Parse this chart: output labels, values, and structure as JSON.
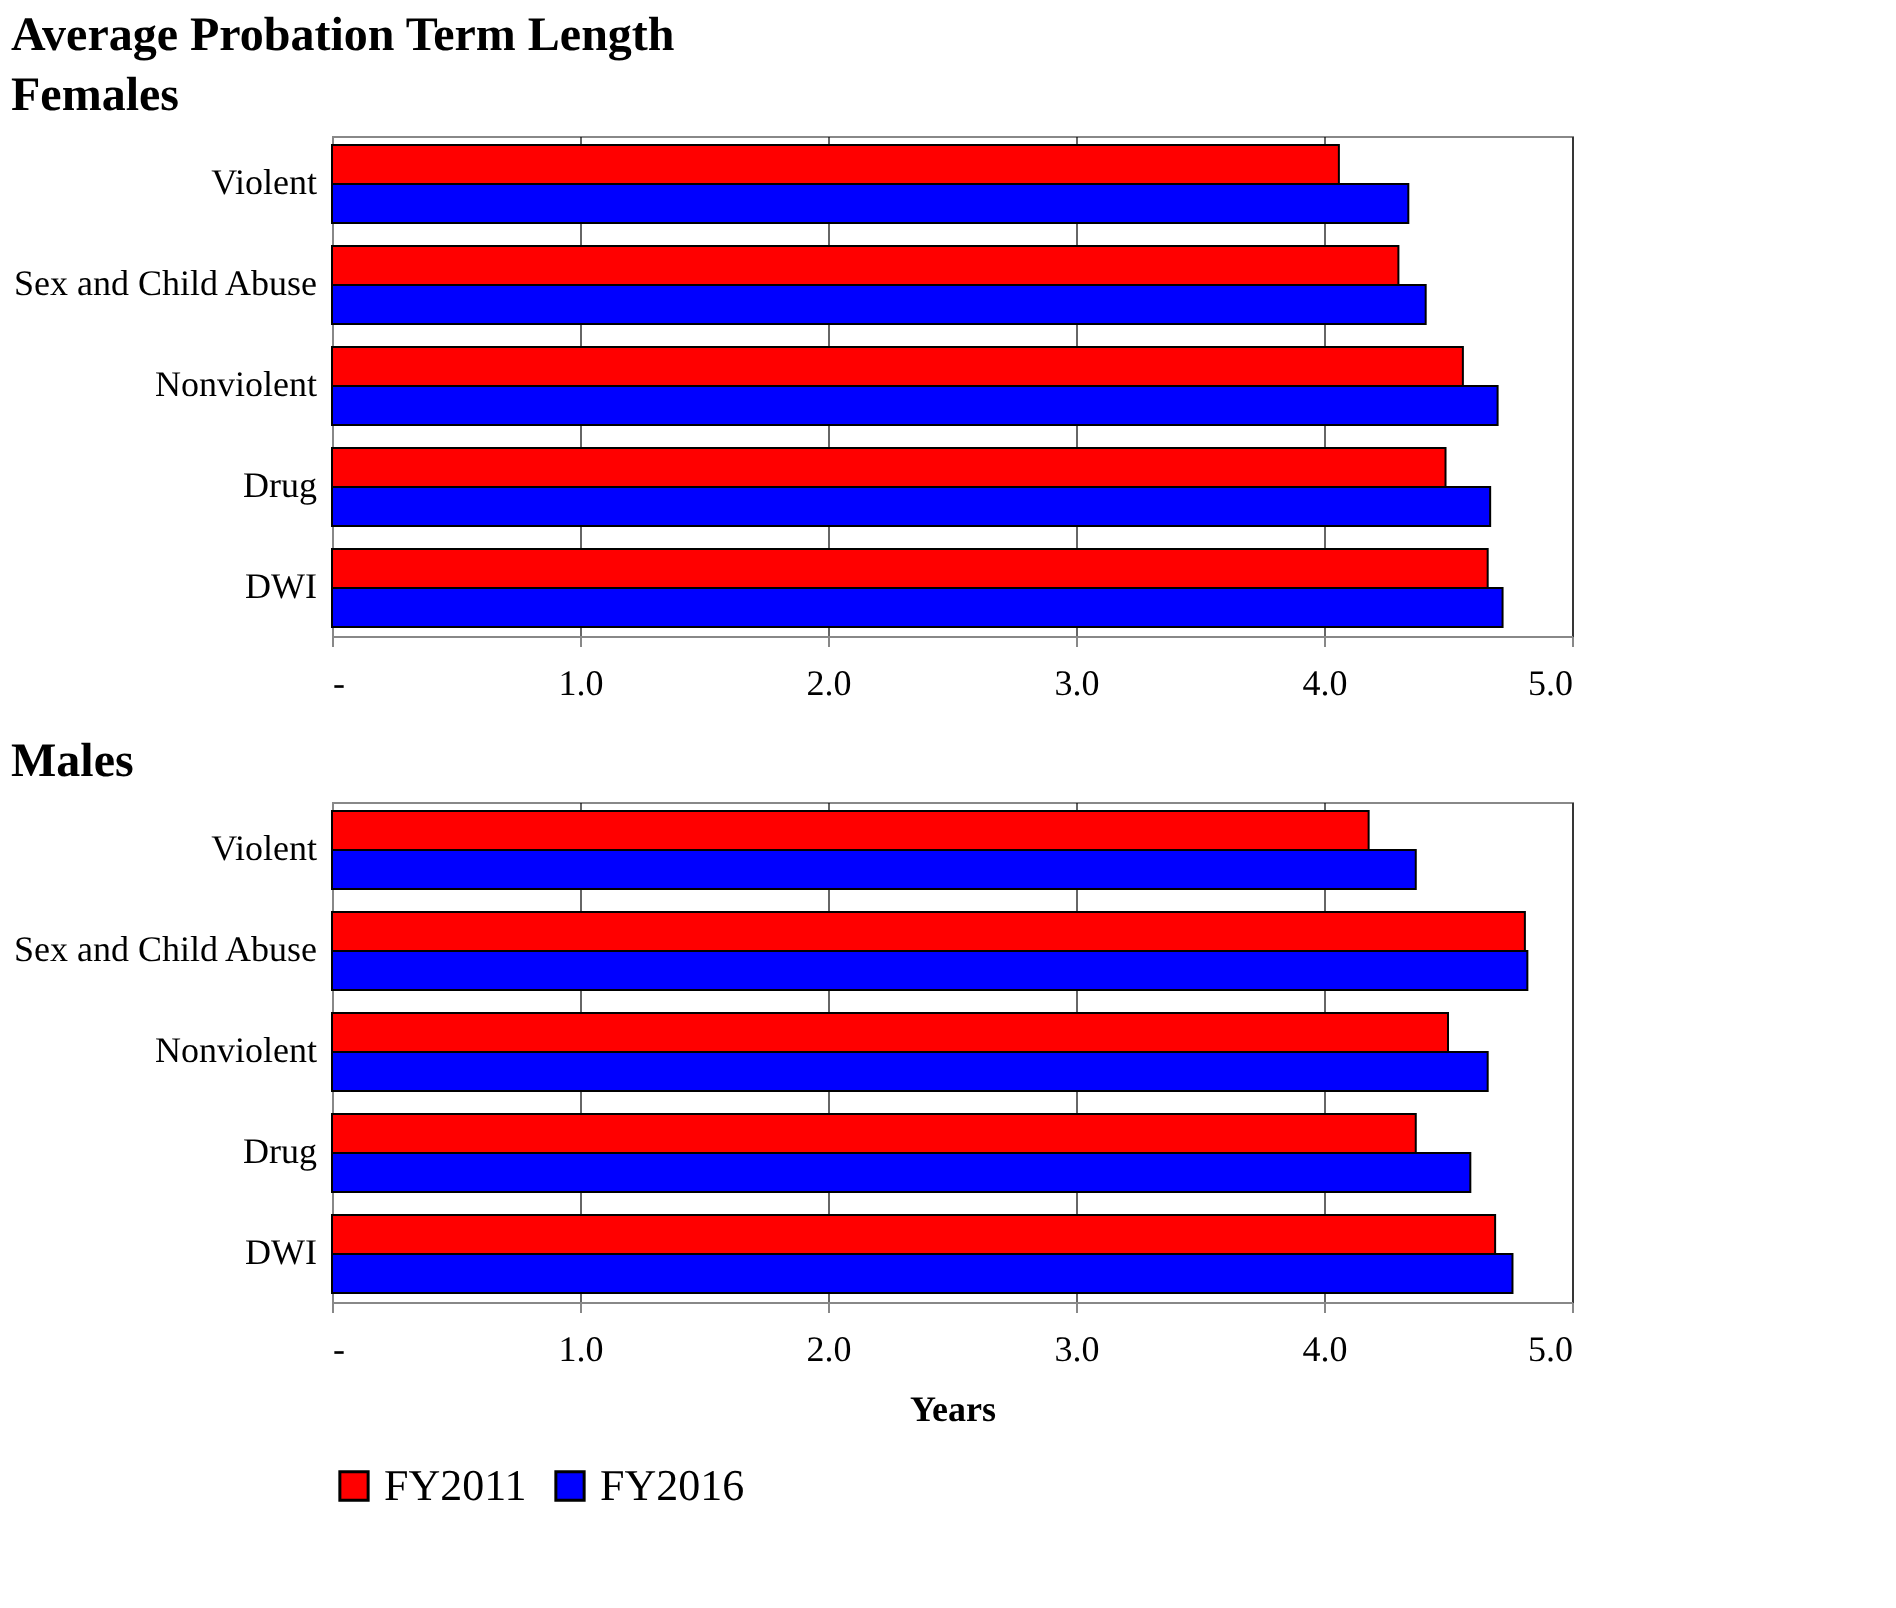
{
  "chart_data": [
    {
      "type": "bar",
      "orientation": "horizontal",
      "title": "Average Probation Term  Length",
      "subtitle": "Females",
      "categories": [
        "Violent",
        "Sex and Child Abuse",
        "Nonviolent",
        "Drug",
        "DWI"
      ],
      "series": [
        {
          "color": "#ff0000",
          "values": [
            4.06,
            4.3,
            4.56,
            4.49,
            4.66
          ]
        },
        {
          "color": "#0000ff",
          "values": [
            4.34,
            4.41,
            4.7,
            4.67,
            4.72
          ]
        }
      ],
      "xlim": [
        0,
        5
      ],
      "xticks": [
        {
          "value": 0,
          "label": "-"
        },
        {
          "value": 1,
          "label": "1.0"
        },
        {
          "value": 2,
          "label": "2.0"
        },
        {
          "value": 3,
          "label": "3.0"
        },
        {
          "value": 4,
          "label": "4.0"
        },
        {
          "value": 5,
          "label": "5.0"
        }
      ],
      "grid": "x"
    },
    {
      "type": "bar",
      "orientation": "horizontal",
      "title": "Males",
      "xlabel": "Years",
      "categories": [
        "Violent",
        "Sex and Child Abuse",
        "Nonviolent",
        "Drug",
        "DWI"
      ],
      "series": [
        {
          "name": "FY2011",
          "color": "#ff0000",
          "values": [
            4.18,
            4.81,
            4.5,
            4.37,
            4.69
          ]
        },
        {
          "name": "FY2016",
          "color": "#0000ff",
          "values": [
            4.37,
            4.82,
            4.66,
            4.59,
            4.76
          ]
        }
      ],
      "xlim": [
        0,
        5
      ],
      "xticks": [
        {
          "value": 0,
          "label": "-"
        },
        {
          "value": 1,
          "label": "1.0"
        },
        {
          "value": 2,
          "label": "2.0"
        },
        {
          "value": 3,
          "label": "3.0"
        },
        {
          "value": 4,
          "label": "4.0"
        },
        {
          "value": 5,
          "label": "5.0"
        }
      ],
      "grid": "x",
      "legend": "bottom"
    }
  ]
}
